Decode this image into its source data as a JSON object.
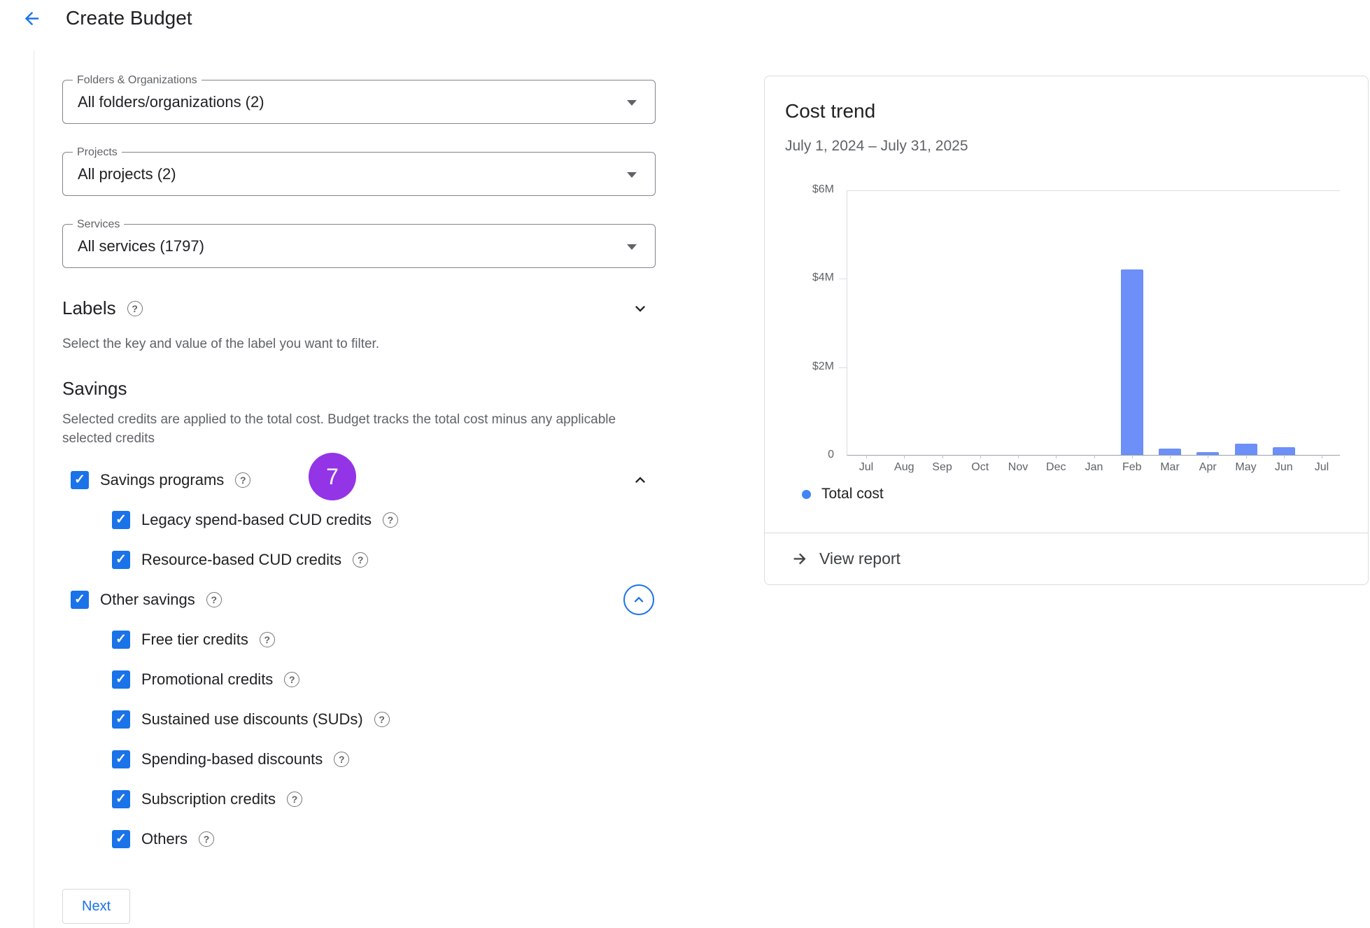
{
  "header": {
    "title": "Create Budget"
  },
  "icons": {
    "back": "arrow-back",
    "help_glyph": "?",
    "dropdown_caret": "triangle-down",
    "labels_chevron": "chevron-down",
    "savings_programs_chevron": "chevron-up",
    "other_savings_chevron": "chevron-up-circled",
    "view_report_arrow": "arrow-forward",
    "legend_dot": "circle"
  },
  "colors": {
    "primary_blue": "#1a73e8",
    "badge_purple": "#9334e6",
    "bar_blue": "#6c8ff8",
    "legend_dot_blue": "#4285f4"
  },
  "form": {
    "fields": [
      {
        "label": "Folders & Organizations",
        "value": "All folders/organizations (2)"
      },
      {
        "label": "Projects",
        "value": "All projects (2)"
      },
      {
        "label": "Services",
        "value": "All services (1797)"
      }
    ],
    "labels_section": {
      "title": "Labels",
      "description": "Select the key and value of the label you want to filter."
    },
    "savings_section": {
      "title": "Savings",
      "description": "Selected credits are applied to the total cost. Budget tracks the total cost minus any applicable selected credits",
      "step_badge": "7",
      "groups": [
        {
          "label": "Savings programs",
          "checked": true,
          "children": [
            {
              "label": "Legacy spend-based CUD credits",
              "checked": true
            },
            {
              "label": "Resource-based CUD credits",
              "checked": true
            }
          ]
        },
        {
          "label": "Other savings",
          "checked": true,
          "children": [
            {
              "label": "Free tier credits",
              "checked": true
            },
            {
              "label": "Promotional credits",
              "checked": true
            },
            {
              "label": "Sustained use discounts (SUDs)",
              "checked": true
            },
            {
              "label": "Spending-based discounts",
              "checked": true
            },
            {
              "label": "Subscription credits",
              "checked": true
            },
            {
              "label": "Others",
              "checked": true
            }
          ]
        }
      ]
    },
    "next_button": "Next"
  },
  "cost_trend": {
    "title": "Cost trend",
    "date_range": "July 1, 2024 – July 31, 2025",
    "legend": "Total cost",
    "view_report": "View report"
  },
  "chart_data": {
    "type": "bar",
    "title": "Cost trend",
    "categories": [
      "Jul",
      "Aug",
      "Sep",
      "Oct",
      "Nov",
      "Dec",
      "Jan",
      "Feb",
      "Mar",
      "Apr",
      "May",
      "Jun",
      "Jul"
    ],
    "values": [
      0,
      0,
      0,
      0,
      0,
      0,
      0,
      4.2,
      0.15,
      0.07,
      0.25,
      0.18,
      0
    ],
    "unit": "USD (millions)",
    "series_name": "Total cost",
    "ylim": [
      0,
      6
    ],
    "yticks": [
      {
        "label": "$6M",
        "value": 6
      },
      {
        "label": "$4M",
        "value": 4
      },
      {
        "label": "$2M",
        "value": 2
      },
      {
        "label": "0",
        "value": 0
      }
    ],
    "bar_color": "#6c8ff8",
    "series_color": "#4285f4",
    "legend_position": "bottom-left",
    "grid": "horizontal-top-only"
  }
}
